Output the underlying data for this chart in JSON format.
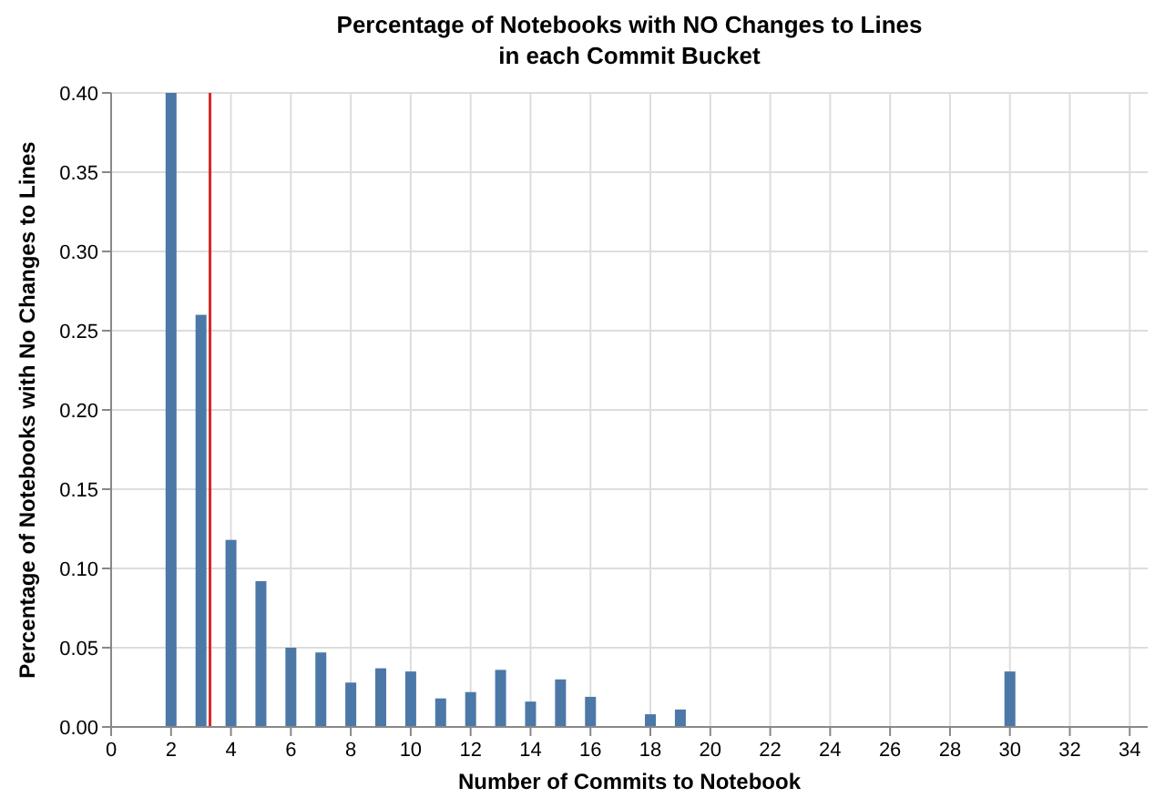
{
  "chart_data": {
    "type": "bar",
    "title": [
      "Percentage of Notebooks with NO Changes to Lines",
      "in each Commit Bucket"
    ],
    "xlabel": "Number of Commits to Notebook",
    "ylabel": "Percentage of Notebooks with No Changes to Lines",
    "x": [
      2,
      3,
      4,
      5,
      6,
      7,
      8,
      9,
      10,
      11,
      12,
      13,
      14,
      15,
      16,
      18,
      19,
      30
    ],
    "values": [
      0.4,
      0.26,
      0.118,
      0.092,
      0.05,
      0.047,
      0.028,
      0.037,
      0.035,
      0.018,
      0.022,
      0.036,
      0.016,
      0.03,
      0.019,
      0.008,
      0.011,
      0.035
    ],
    "color": "#4c78a8",
    "xlim": [
      0,
      34.6
    ],
    "xticks": [
      0,
      2,
      4,
      6,
      8,
      10,
      12,
      14,
      16,
      18,
      20,
      22,
      24,
      26,
      28,
      30,
      32,
      34
    ],
    "ylim": [
      0,
      0.4
    ],
    "yticks": [
      {
        "value": 0,
        "label": "0.00"
      },
      {
        "value": 0.05,
        "label": "0.05"
      },
      {
        "value": 0.1,
        "label": "0.10"
      },
      {
        "value": 0.15,
        "label": "0.15"
      },
      {
        "value": 0.2,
        "label": "0.20"
      },
      {
        "value": 0.25,
        "label": "0.25"
      },
      {
        "value": 0.3,
        "label": "0.30"
      },
      {
        "value": 0.35,
        "label": "0.35"
      },
      {
        "value": 0.4,
        "label": "0.40"
      }
    ],
    "grid": true,
    "ref_lines": [
      {
        "axis": "x",
        "value": 3.3,
        "color": "#d62728"
      }
    ]
  }
}
